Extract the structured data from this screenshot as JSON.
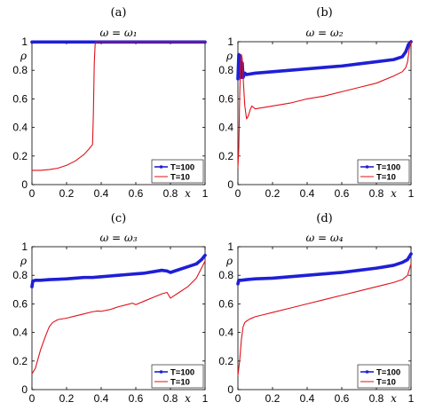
{
  "chart_data": [
    {
      "type": "line",
      "panel_label": "(a)",
      "title": "ω = ω₁",
      "xlabel": "x",
      "ylabel": "ρ",
      "xlim": [
        0,
        1
      ],
      "ylim": [
        0,
        1
      ],
      "xticks": [
        "0",
        "0.2",
        "0.4",
        "0.6",
        "0.8",
        "1"
      ],
      "yticks": [
        "0",
        "0.2",
        "0.4",
        "0.6",
        "0.8",
        "1"
      ],
      "legend_position": "bottom-right",
      "series": [
        {
          "name": "T=100",
          "color": "#1f1fd6",
          "marker": "dot",
          "x": [
            0,
            0.2,
            0.4,
            0.6,
            0.8,
            1.0
          ],
          "y": [
            0.998,
            0.998,
            0.998,
            0.998,
            0.998,
            0.998
          ]
        },
        {
          "name": "T=10",
          "color": "#e0101a",
          "x": [
            0,
            0.05,
            0.1,
            0.15,
            0.2,
            0.25,
            0.3,
            0.33,
            0.35,
            0.355,
            0.36,
            0.365,
            0.37,
            0.4,
            0.6,
            0.8,
            1.0
          ],
          "y": [
            0.1,
            0.1,
            0.105,
            0.115,
            0.135,
            0.165,
            0.21,
            0.25,
            0.28,
            0.5,
            0.85,
            0.98,
            1.0,
            1.0,
            1.0,
            1.0,
            1.0
          ]
        }
      ]
    },
    {
      "type": "line",
      "panel_label": "(b)",
      "title": "ω = ω₂",
      "xlabel": "x",
      "ylabel": "ρ",
      "xlim": [
        0,
        1
      ],
      "ylim": [
        0,
        1
      ],
      "xticks": [
        "0",
        "0.2",
        "0.4",
        "0.6",
        "0.8",
        "1"
      ],
      "yticks": [
        "0",
        "0.2",
        "0.4",
        "0.6",
        "0.8",
        "1"
      ],
      "legend_position": "bottom-right",
      "series": [
        {
          "name": "T=100",
          "color": "#1f1fd6",
          "marker": "dot",
          "x": [
            0,
            0.005,
            0.012,
            0.018,
            0.025,
            0.03,
            0.04,
            0.05,
            0.1,
            0.2,
            0.3,
            0.4,
            0.5,
            0.6,
            0.7,
            0.8,
            0.9,
            0.95,
            0.97,
            0.985,
            1.0
          ],
          "y": [
            0.74,
            0.91,
            0.9,
            0.75,
            0.85,
            0.75,
            0.78,
            0.77,
            0.78,
            0.79,
            0.8,
            0.81,
            0.82,
            0.83,
            0.845,
            0.86,
            0.875,
            0.895,
            0.93,
            0.98,
            1.0
          ]
        },
        {
          "name": "T=10",
          "color": "#e0101a",
          "x": [
            0,
            0.005,
            0.01,
            0.015,
            0.02,
            0.025,
            0.03,
            0.04,
            0.05,
            0.06,
            0.07,
            0.08,
            0.1,
            0.15,
            0.2,
            0.3,
            0.4,
            0.5,
            0.6,
            0.7,
            0.8,
            0.9,
            0.95,
            0.97,
            0.98,
            0.99,
            1.0
          ],
          "y": [
            0.12,
            0.25,
            0.6,
            0.85,
            0.91,
            0.88,
            0.75,
            0.55,
            0.46,
            0.48,
            0.52,
            0.55,
            0.53,
            0.54,
            0.55,
            0.57,
            0.6,
            0.62,
            0.65,
            0.68,
            0.71,
            0.76,
            0.79,
            0.82,
            0.86,
            0.95,
            1.0
          ]
        }
      ]
    },
    {
      "type": "line",
      "panel_label": "(c)",
      "title": "ω = ω₃",
      "xlabel": "x",
      "ylabel": "ρ",
      "xlim": [
        0,
        1
      ],
      "ylim": [
        0,
        1
      ],
      "xticks": [
        "0",
        "0.2",
        "0.4",
        "0.6",
        "0.8",
        "1"
      ],
      "yticks": [
        "0",
        "0.2",
        "0.4",
        "0.6",
        "0.8",
        "1"
      ],
      "legend_position": "bottom-right",
      "series": [
        {
          "name": "T=100",
          "color": "#1f1fd6",
          "marker": "dot",
          "x": [
            0,
            0.005,
            0.02,
            0.05,
            0.1,
            0.15,
            0.2,
            0.25,
            0.3,
            0.35,
            0.4,
            0.45,
            0.5,
            0.55,
            0.6,
            0.65,
            0.7,
            0.75,
            0.78,
            0.8,
            0.85,
            0.9,
            0.95,
            0.98,
            1.0
          ],
          "y": [
            0.72,
            0.76,
            0.765,
            0.765,
            0.77,
            0.772,
            0.775,
            0.78,
            0.785,
            0.785,
            0.79,
            0.795,
            0.8,
            0.805,
            0.81,
            0.815,
            0.825,
            0.835,
            0.83,
            0.82,
            0.84,
            0.86,
            0.88,
            0.91,
            0.94
          ]
        },
        {
          "name": "T=10",
          "color": "#e0101a",
          "x": [
            0,
            0.02,
            0.05,
            0.08,
            0.1,
            0.12,
            0.15,
            0.2,
            0.25,
            0.3,
            0.35,
            0.38,
            0.4,
            0.45,
            0.5,
            0.55,
            0.58,
            0.6,
            0.65,
            0.7,
            0.75,
            0.78,
            0.8,
            0.85,
            0.9,
            0.95,
            1.0
          ],
          "y": [
            0.11,
            0.15,
            0.28,
            0.38,
            0.44,
            0.47,
            0.49,
            0.5,
            0.515,
            0.53,
            0.545,
            0.55,
            0.548,
            0.56,
            0.58,
            0.595,
            0.605,
            0.595,
            0.62,
            0.645,
            0.67,
            0.68,
            0.64,
            0.68,
            0.72,
            0.78,
            0.9
          ]
        }
      ]
    },
    {
      "type": "line",
      "panel_label": "(d)",
      "title": "ω = ω₄",
      "xlabel": "x",
      "ylabel": "ρ",
      "xlim": [
        0,
        1
      ],
      "ylim": [
        0,
        1
      ],
      "xticks": [
        "0",
        "0.2",
        "0.4",
        "0.6",
        "0.8",
        "1"
      ],
      "yticks": [
        "0",
        "0.2",
        "0.4",
        "0.6",
        "0.8",
        "1"
      ],
      "legend_position": "bottom-right",
      "series": [
        {
          "name": "T=100",
          "color": "#1f1fd6",
          "marker": "dot",
          "x": [
            0,
            0.005,
            0.02,
            0.05,
            0.1,
            0.2,
            0.3,
            0.4,
            0.5,
            0.6,
            0.7,
            0.8,
            0.85,
            0.9,
            0.95,
            0.98,
            1.0
          ],
          "y": [
            0.74,
            0.765,
            0.765,
            0.77,
            0.775,
            0.78,
            0.79,
            0.8,
            0.81,
            0.82,
            0.835,
            0.85,
            0.86,
            0.87,
            0.89,
            0.91,
            0.95
          ]
        },
        {
          "name": "T=10",
          "color": "#e0101a",
          "x": [
            0,
            0.01,
            0.02,
            0.03,
            0.04,
            0.05,
            0.07,
            0.1,
            0.15,
            0.2,
            0.3,
            0.4,
            0.5,
            0.6,
            0.7,
            0.8,
            0.85,
            0.9,
            0.95,
            0.98,
            1.0
          ],
          "y": [
            0.1,
            0.2,
            0.35,
            0.44,
            0.47,
            0.48,
            0.495,
            0.51,
            0.525,
            0.54,
            0.57,
            0.6,
            0.63,
            0.66,
            0.69,
            0.72,
            0.735,
            0.75,
            0.77,
            0.8,
            0.88
          ]
        }
      ]
    }
  ]
}
